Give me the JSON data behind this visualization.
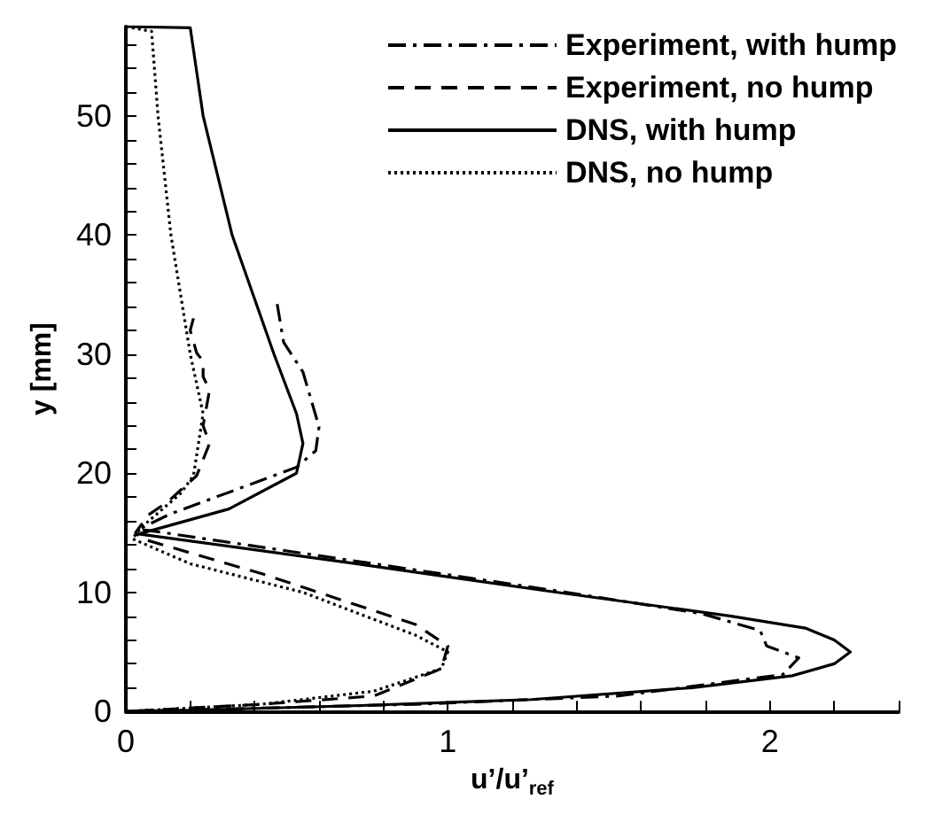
{
  "chart_data": {
    "type": "line",
    "xlabel": "u’/u’$_{ref}$",
    "ylabel": "y [mm]",
    "xlim": [
      0,
      2.4
    ],
    "ylim": [
      0,
      57.5
    ],
    "xticks": [
      0,
      {
        "value": 0.2,
        "label": null
      },
      {
        "value": 0.4,
        "label": null
      },
      {
        "value": 0.6,
        "label": null
      },
      {
        "value": 0.8,
        "label": null
      },
      1,
      {
        "value": 1.2,
        "label": null
      },
      {
        "value": 1.4,
        "label": null
      },
      {
        "value": 1.6,
        "label": null
      },
      {
        "value": 1.8,
        "label": null
      },
      2,
      {
        "value": 2.2,
        "label": null
      },
      {
        "value": 2.4,
        "label": null
      }
    ],
    "yticks": [
      0,
      {
        "value": 2,
        "label": null
      },
      {
        "value": 4,
        "label": null
      },
      {
        "value": 6,
        "label": null
      },
      {
        "value": 8,
        "label": null
      },
      10,
      {
        "value": 12,
        "label": null
      },
      {
        "value": 14,
        "label": null
      },
      {
        "value": 16,
        "label": null
      },
      {
        "value": 18,
        "label": null
      },
      20,
      {
        "value": 22,
        "label": null
      },
      {
        "value": 24,
        "label": null
      },
      {
        "value": 26,
        "label": null
      },
      {
        "value": 28,
        "label": null
      },
      30,
      {
        "value": 32,
        "label": null
      },
      {
        "value": 34,
        "label": null
      },
      {
        "value": 36,
        "label": null
      },
      {
        "value": 38,
        "label": null
      },
      40,
      {
        "value": 42,
        "label": null
      },
      {
        "value": 44,
        "label": null
      },
      {
        "value": 46,
        "label": null
      },
      {
        "value": 48,
        "label": null
      },
      50,
      {
        "value": 52,
        "label": null
      },
      {
        "value": 54,
        "label": null
      },
      {
        "value": 56,
        "label": null
      }
    ],
    "grid": false,
    "legend": "top right",
    "marker": "none",
    "series": [
      {
        "name": "Experiment, with hump",
        "color": "#000000",
        "line_style": "dashdot",
        "x": [
          0.47,
          0.49,
          0.55,
          0.6,
          0.59,
          0.53,
          0.14,
          0.04,
          0.07,
          1.37,
          1.79,
          1.97,
          1.99,
          2.09,
          2.04,
          1.53,
          0.9,
          0
        ],
        "values": [
          34.2,
          31,
          28.5,
          23.9,
          21.9,
          20.5,
          16.6,
          15.3,
          15.2,
          10,
          8.2,
          6.8,
          5.5,
          4.5,
          3.1,
          1.3,
          0.6,
          0
        ]
      },
      {
        "name": "Experiment, no hump",
        "color": "#000000",
        "line_style": "dashed",
        "x": [
          0.21,
          0.2,
          0.22,
          0.24,
          0.24,
          0.26,
          0.24,
          0.26,
          0.22,
          0.13,
          0.07,
          0.03,
          0.05,
          0.43,
          0.9,
          1.0,
          0.98,
          0.77,
          0.42,
          0
        ],
        "values": [
          33,
          32,
          30.1,
          29.4,
          28.1,
          27,
          24,
          22.5,
          19.8,
          17.6,
          16.5,
          15,
          14.5,
          11.5,
          7.3,
          5.5,
          3.6,
          1.3,
          0.6,
          0
        ]
      },
      {
        "name": "DNS, with hump",
        "color": "#000000",
        "line_style": "solid",
        "x": [
          0,
          0.2,
          0.24,
          0.33,
          0.46,
          0.53,
          0.55,
          0.53,
          0.32,
          0.04,
          0.69,
          1.34,
          1.88,
          2.11,
          2.2,
          2.25,
          2.2,
          2.07,
          1.76,
          1.26,
          0.73,
          0.2,
          0
        ],
        "values": [
          57.5,
          57.4,
          50,
          40,
          30,
          25,
          22.5,
          20,
          17,
          14.9,
          12.5,
          10,
          8,
          7,
          6,
          5,
          4,
          3,
          2,
          1,
          0.5,
          0.1,
          0
        ]
      },
      {
        "name": "DNS, no hump",
        "color": "#000000",
        "line_style": "dotted",
        "x": [
          0,
          0.08,
          0.1,
          0.14,
          0.2,
          0.24,
          0.21,
          0.17,
          0.05,
          0.02,
          0.2,
          0.55,
          0.9,
          1.0,
          0.98,
          0.77,
          0.42,
          0
        ],
        "values": [
          57.5,
          57.1,
          50,
          40,
          30,
          25,
          19.8,
          18.3,
          15.5,
          14.5,
          12.4,
          10,
          6.4,
          5,
          3.6,
          1.7,
          0.6,
          0
        ]
      }
    ]
  }
}
